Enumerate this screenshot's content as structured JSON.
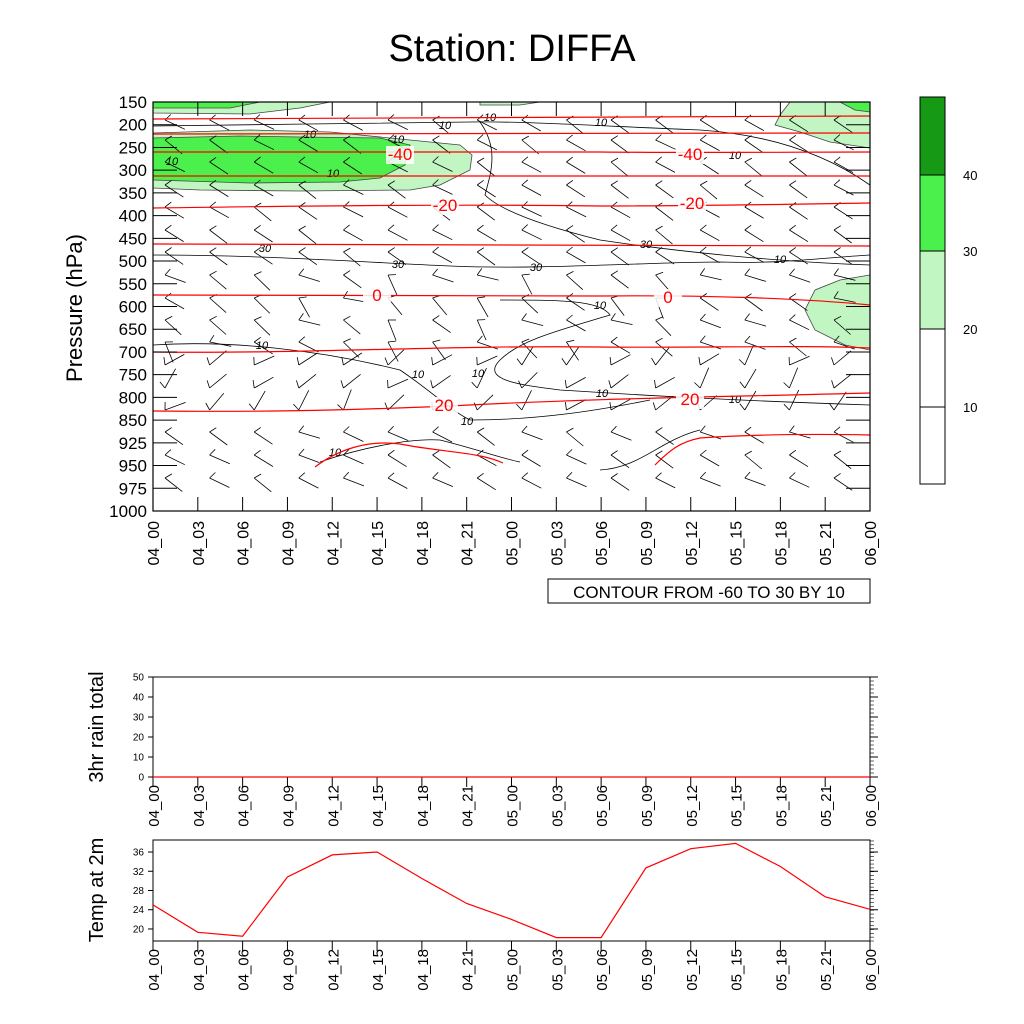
{
  "title": "Station: DIFFA",
  "colors": {
    "temp_contour": "#ff0000",
    "wind_line": "#000000",
    "fill_20": "#c1f5c1",
    "fill_30": "#4cf04c",
    "fill_40": "#169a16",
    "temp2m_line": "#ff0000"
  },
  "chart_data": [
    {
      "type": "heatmap",
      "name": "main-sounding",
      "ylabel": "Pressure (hPa)",
      "xlabel": "",
      "x_ticks": [
        "04_00",
        "04_03",
        "04_06",
        "04_09",
        "04_12",
        "04_15",
        "04_18",
        "04_21",
        "05_00",
        "05_03",
        "05_06",
        "05_09",
        "05_12",
        "05_15",
        "05_18",
        "05_21",
        "06_00"
      ],
      "y_ticks": [
        "150",
        "200",
        "250",
        "300",
        "350",
        "400",
        "450",
        "500",
        "550",
        "600",
        "650",
        "700",
        "750",
        "800",
        "850",
        "925",
        "950",
        "975",
        "1000"
      ],
      "contour_info": "CONTOUR FROM -60 TO 30 BY 10",
      "colorbar": {
        "levels": [
          "10",
          "20",
          "30",
          "40"
        ]
      },
      "temp_contour_labels": [
        {
          "text": "-40",
          "at": "04_17"
        },
        {
          "text": "-40",
          "at": "05_12"
        },
        {
          "text": "-20",
          "at": "04_18"
        },
        {
          "text": "-20",
          "at": "05_12"
        },
        {
          "text": "0",
          "at": "04_15"
        },
        {
          "text": "0",
          "at": "05_10"
        },
        {
          "text": "20",
          "at": "04_18"
        },
        {
          "text": "20",
          "at": "05_12"
        }
      ],
      "wind_contour_labels": [
        "10",
        "10",
        "10",
        "30",
        "30",
        "30",
        "30",
        "10",
        "10",
        "10",
        "10",
        "10",
        "10",
        "10",
        "10",
        "10",
        "10",
        "10",
        "10"
      ]
    },
    {
      "type": "line",
      "name": "rain",
      "ylabel": "3hr rain total",
      "x": [
        "04_00",
        "04_03",
        "04_06",
        "04_09",
        "04_12",
        "04_15",
        "04_18",
        "04_21",
        "05_00",
        "05_03",
        "05_06",
        "05_09",
        "05_12",
        "05_15",
        "05_18",
        "05_21",
        "06_00"
      ],
      "values": [
        0,
        0,
        0,
        0,
        0,
        0,
        0,
        0,
        0,
        0,
        0,
        0,
        0,
        0,
        0,
        0,
        0
      ],
      "ylim": [
        0,
        50
      ],
      "y_ticks": [
        "0",
        "10",
        "20",
        "30",
        "40",
        "50"
      ]
    },
    {
      "type": "line",
      "name": "temp2m",
      "ylabel": "Temp at 2m",
      "x": [
        "04_00",
        "04_03",
        "04_06",
        "04_09",
        "04_12",
        "04_15",
        "04_18",
        "04_21",
        "05_00",
        "05_03",
        "05_06",
        "05_09",
        "05_12",
        "05_15",
        "05_18",
        "05_21",
        "06_00"
      ],
      "values": [
        25.0,
        19.3,
        18.5,
        30.8,
        35.4,
        36.0,
        30.5,
        25.3,
        22.0,
        18.2,
        18.2,
        32.7,
        36.7,
        37.8,
        33.0,
        26.7,
        24.1
      ],
      "ylim": [
        17.5,
        38.5
      ],
      "y_ticks": [
        "20",
        "24",
        "28",
        "32",
        "36"
      ]
    }
  ]
}
